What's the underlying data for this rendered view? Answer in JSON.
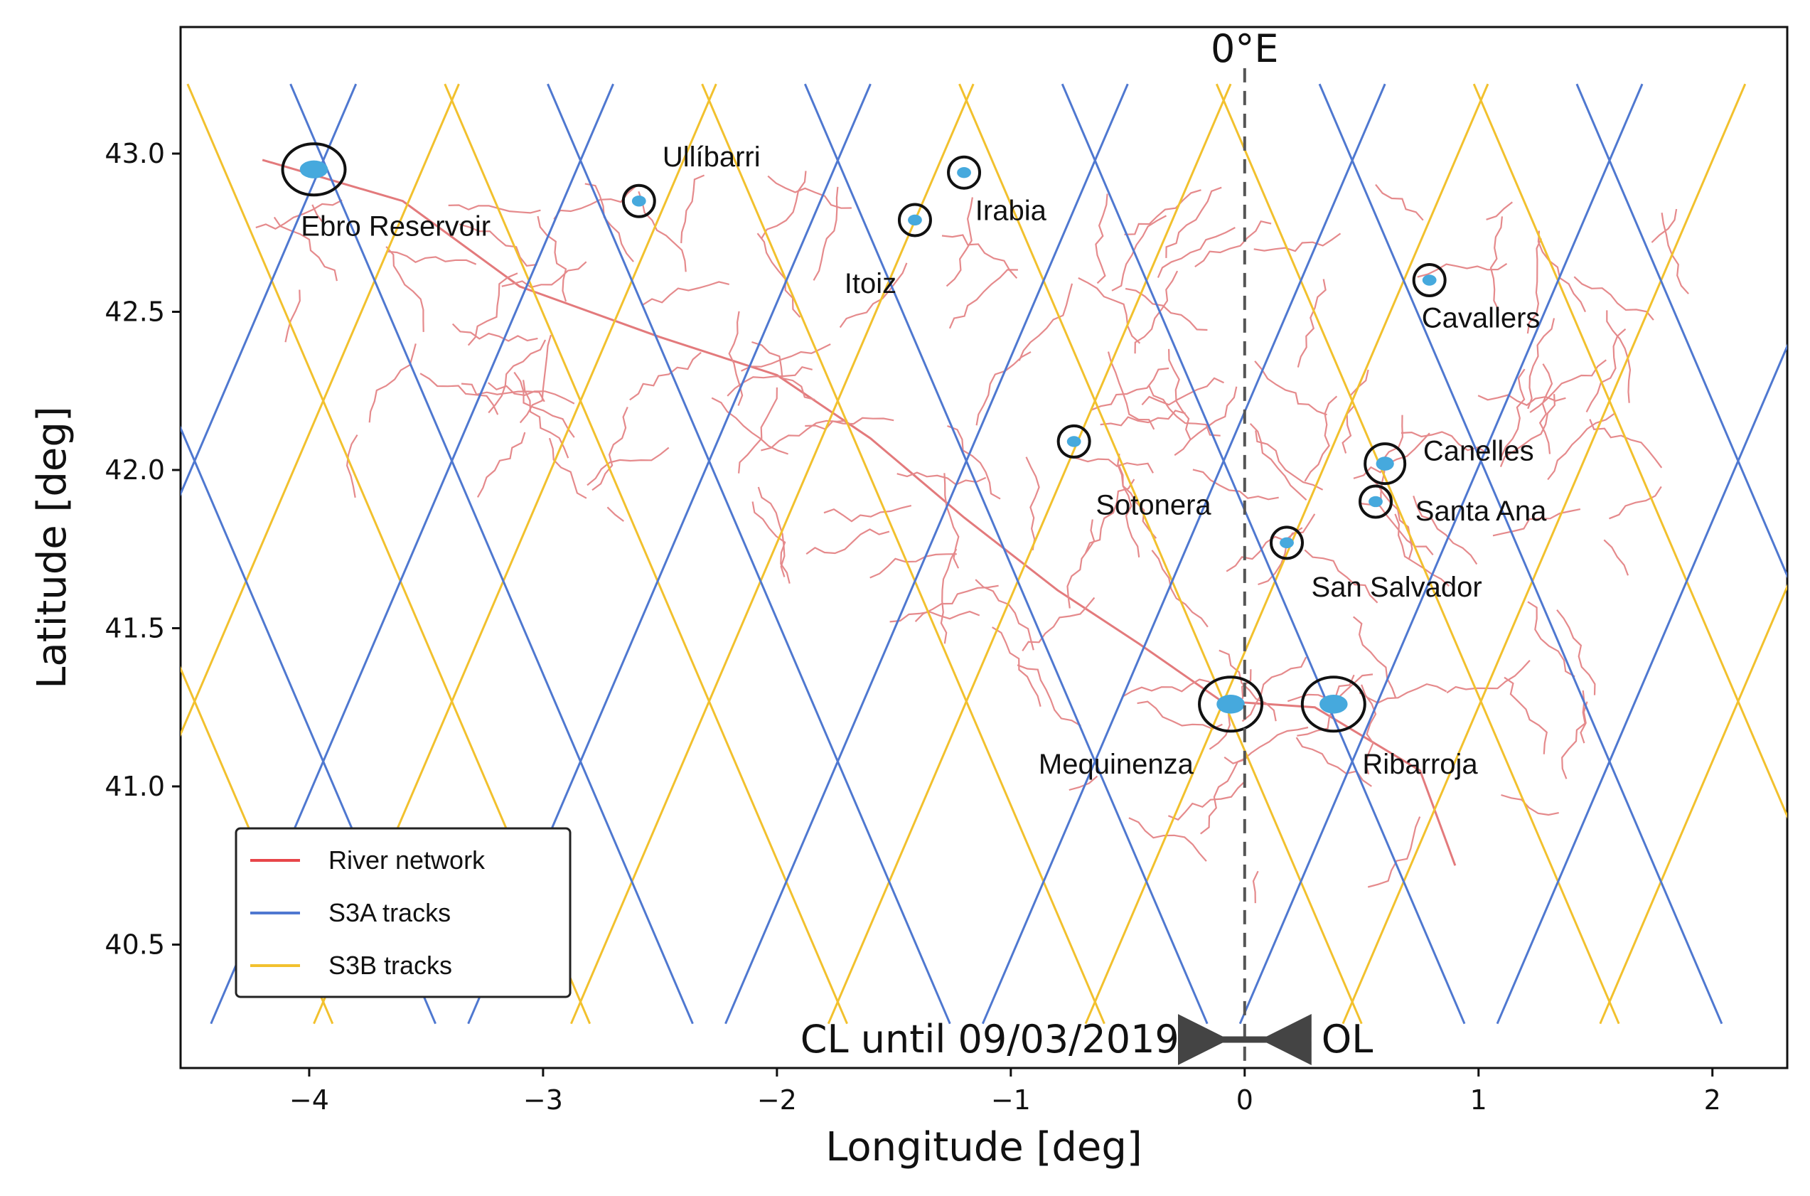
{
  "chart_data": {
    "type": "map",
    "xlabel": "Longitude [deg]",
    "ylabel": "Latitude [deg]",
    "xlim": [
      -4.55,
      2.32
    ],
    "ylim": [
      40.11,
      43.4
    ],
    "x_ticks": [
      {
        "value": -4,
        "label": "−4"
      },
      {
        "value": -3,
        "label": "−3"
      },
      {
        "value": -2,
        "label": "−2"
      },
      {
        "value": -1,
        "label": "−1"
      },
      {
        "value": 0,
        "label": "0"
      },
      {
        "value": 1,
        "label": "1"
      },
      {
        "value": 2,
        "label": "2"
      }
    ],
    "y_ticks": [
      {
        "value": 43.0,
        "label": "43.0"
      },
      {
        "value": 42.5,
        "label": "42.5"
      },
      {
        "value": 42.0,
        "label": "42.0"
      },
      {
        "value": 41.5,
        "label": "41.5"
      },
      {
        "value": 41.0,
        "label": "41.0"
      },
      {
        "value": 40.5,
        "label": "40.5"
      }
    ],
    "meridian": {
      "lon": 0,
      "label": "0°E"
    },
    "mode_annotation": {
      "left": "CL until 09/03/2019",
      "right": "OL"
    },
    "legend": [
      {
        "name": "River network",
        "color": "#e8464a"
      },
      {
        "name": "S3A tracks",
        "color": "#4f78d0"
      },
      {
        "name": "S3B tracks",
        "color": "#f2c12e"
      }
    ],
    "track_lat_range": [
      40.25,
      43.22
    ],
    "s3a_tracks": {
      "descending": [
        {
          "lon_top": -4.08,
          "lon_bottom": -2.36
        },
        {
          "lon_top": -2.98,
          "lon_bottom": -1.26
        },
        {
          "lon_top": -1.88,
          "lon_bottom": -0.16
        },
        {
          "lon_top": -0.78,
          "lon_bottom": 0.94
        },
        {
          "lon_top": 0.32,
          "lon_bottom": 2.04
        },
        {
          "lon_top": 1.42,
          "lon_bottom": 3.14
        },
        {
          "lon_top": -5.18,
          "lon_bottom": -3.46
        }
      ],
      "ascending": [
        {
          "lon_top": -3.8,
          "lon_bottom": -5.52
        },
        {
          "lon_top": -2.7,
          "lon_bottom": -4.42
        },
        {
          "lon_top": -1.6,
          "lon_bottom": -3.32
        },
        {
          "lon_top": -0.5,
          "lon_bottom": -2.22
        },
        {
          "lon_top": 0.6,
          "lon_bottom": -1.12
        },
        {
          "lon_top": 1.7,
          "lon_bottom": -0.02
        },
        {
          "lon_top": 2.8,
          "lon_bottom": 1.08
        }
      ]
    },
    "s3b_tracks": {
      "descending": [
        {
          "lon_top": -4.52,
          "lon_bottom": -2.8
        },
        {
          "lon_top": -3.42,
          "lon_bottom": -1.7
        },
        {
          "lon_top": -2.32,
          "lon_bottom": -0.6
        },
        {
          "lon_top": -1.22,
          "lon_bottom": 0.5
        },
        {
          "lon_top": -0.12,
          "lon_bottom": 1.6
        },
        {
          "lon_top": 0.98,
          "lon_bottom": 2.7
        },
        {
          "lon_top": -5.62,
          "lon_bottom": -3.9
        }
      ],
      "ascending": [
        {
          "lon_top": -3.36,
          "lon_bottom": -5.08
        },
        {
          "lon_top": -2.26,
          "lon_bottom": -3.98
        },
        {
          "lon_top": -1.16,
          "lon_bottom": -2.88
        },
        {
          "lon_top": -0.06,
          "lon_bottom": -1.78
        },
        {
          "lon_top": 1.04,
          "lon_bottom": -0.68
        },
        {
          "lon_top": 2.14,
          "lon_bottom": 0.42
        },
        {
          "lon_top": 3.24,
          "lon_bottom": 1.52
        }
      ]
    },
    "reservoirs": [
      {
        "name": "Ebro Reservoir",
        "lon": -3.98,
        "lat": 42.95,
        "label_lon": -3.63,
        "label_lat": 42.74
      },
      {
        "name": "Ullíbarri",
        "lon": -2.59,
        "lat": 42.85,
        "label_lon": -2.28,
        "label_lat": 42.96
      },
      {
        "name": "Irabia",
        "lon": -1.2,
        "lat": 42.94,
        "label_lon": -1.0,
        "label_lat": 42.79
      },
      {
        "name": "Itoiz",
        "lon": -1.41,
        "lat": 42.79,
        "label_lon": -1.6,
        "label_lat": 42.56
      },
      {
        "name": "Cavallers",
        "lon": 0.79,
        "lat": 42.6,
        "label_lon": 1.01,
        "label_lat": 42.45
      },
      {
        "name": "Sotonera",
        "lon": -0.73,
        "lat": 42.09,
        "label_lon": -0.39,
        "label_lat": 41.86
      },
      {
        "name": "Canelles",
        "lon": 0.6,
        "lat": 42.02,
        "label_lon": 1.0,
        "label_lat": 42.03
      },
      {
        "name": "Santa Ana",
        "lon": 0.56,
        "lat": 41.9,
        "label_lon": 1.01,
        "label_lat": 41.84
      },
      {
        "name": "San Salvador",
        "lon": 0.18,
        "lat": 41.77,
        "label_lon": 0.65,
        "label_lat": 41.6
      },
      {
        "name": "Mequinenza",
        "lon": -0.06,
        "lat": 41.26,
        "label_lon": -0.55,
        "label_lat": 41.04
      },
      {
        "name": "Ribarroja",
        "lon": 0.38,
        "lat": 41.26,
        "label_lon": 0.75,
        "label_lat": 41.04
      }
    ]
  }
}
